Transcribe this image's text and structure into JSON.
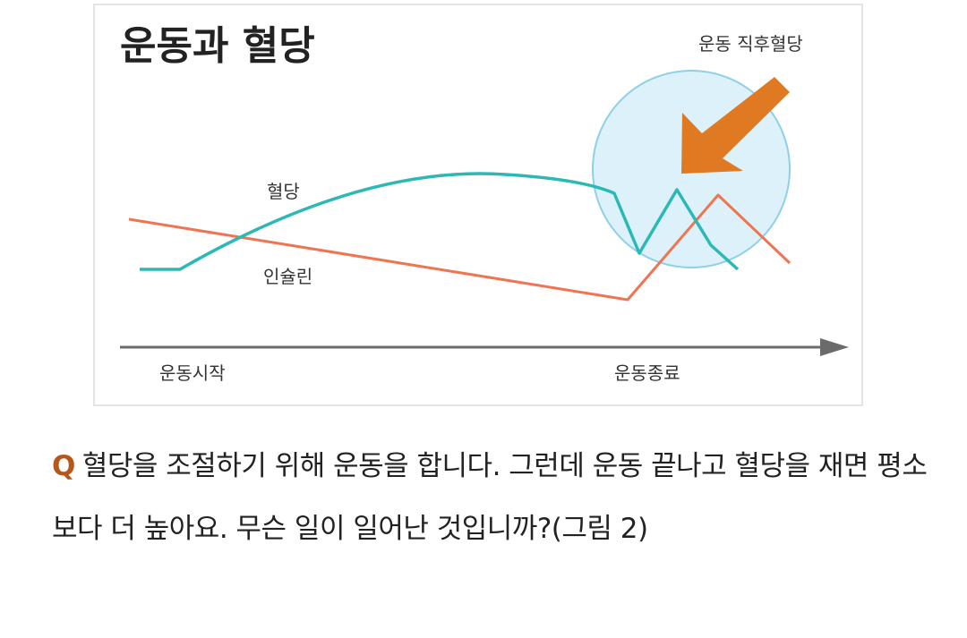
{
  "figure": {
    "title": "운동과 혈당",
    "annotation": "운동 직후혈당",
    "curve_labels": {
      "glucose": "혈당",
      "insulin": "인슐린"
    },
    "axis_labels": {
      "start": "운동시작",
      "end": "운동종료"
    },
    "colors": {
      "glucose_line": "#2cb8b4",
      "insulin_line": "#f07452",
      "arrow": "#e07a22",
      "highlight_circle_fill": "#dcf1fa",
      "highlight_circle_stroke": "#8fd0e6",
      "axis": "#6b6b6b"
    },
    "icons": {
      "pointer": "arrow-down-left-icon",
      "axis": "arrow-right-icon"
    }
  },
  "question": {
    "marker": "Q",
    "text": "혈당을 조절하기 위해 운동을 합니다. 그런데 운동 끝나고 혈당을 재면 평소보다 더 높아요. 무슨 일이 일어난 것입니까?(그림 2)"
  }
}
